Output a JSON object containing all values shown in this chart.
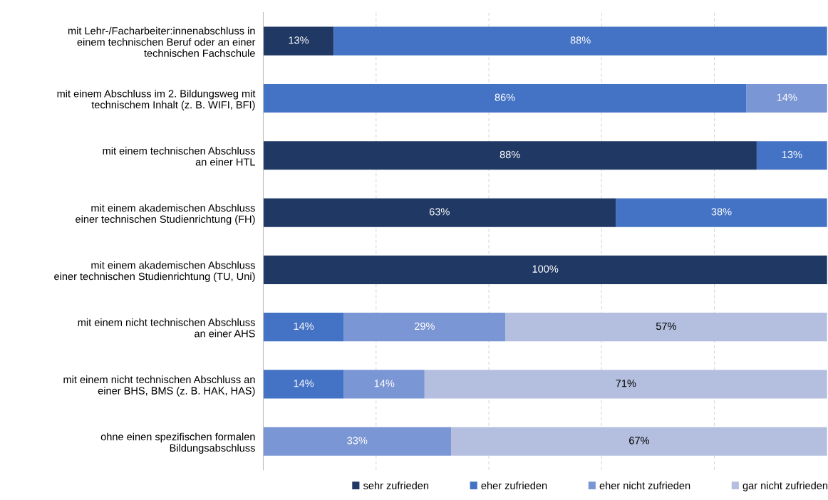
{
  "chart_data": {
    "type": "bar",
    "orientation": "horizontal",
    "stacked": true,
    "categories": [
      "mit Lehr-/Facharbeiter:innenabschluss in\neinem technischen Beruf oder an einer\ntechnischen Fachschule",
      "mit einem Abschluss im 2. Bildungsweg mit\ntechnischem Inhalt (z. B. WIFI, BFI)",
      "mit einem technischen Abschluss\nan einer HTL",
      "mit einem akademischen Abschluss\neiner technischen Studienrichtung (FH)",
      "mit einem akademischen Abschluss\neiner technischen Studienrichtung (TU, Uni)",
      "mit einem nicht technischen Abschluss\nan einer AHS",
      "mit einem nicht technischen Abschluss an\neiner BHS, BMS (z. B. HAK, HAS)",
      "ohne einen spezifischen formalen\nBildungsabschluss"
    ],
    "series": [
      {
        "name": "sehr zufrieden",
        "color": "#203864",
        "values": [
          12.5,
          null,
          87.5,
          62.5,
          100,
          null,
          null,
          null
        ],
        "value_labels": [
          "13%",
          null,
          "88%",
          "63%",
          "100%",
          null,
          null,
          null
        ]
      },
      {
        "name": "eher zufrieden",
        "color": "#4472c4",
        "values": [
          87.5,
          85.7,
          12.5,
          37.5,
          null,
          14.3,
          14.3,
          null
        ],
        "value_labels": [
          "88%",
          "86%",
          "13%",
          "38%",
          null,
          "14%",
          "14%",
          null
        ]
      },
      {
        "name": "eher nicht zufrieden",
        "color": "#7b96d4",
        "values": [
          null,
          14.3,
          null,
          null,
          null,
          28.6,
          14.3,
          33.3
        ],
        "value_labels": [
          null,
          "14%",
          null,
          null,
          null,
          "29%",
          "14%",
          "33%"
        ]
      },
      {
        "name": "gar nicht zufrieden",
        "color": "#b4bfe0",
        "values": [
          null,
          null,
          null,
          null,
          null,
          57.1,
          71.4,
          66.7
        ],
        "value_labels": [
          null,
          null,
          null,
          null,
          null,
          "57%",
          "71%",
          "67%"
        ]
      }
    ],
    "xlim": [
      0,
      100
    ],
    "xticks": [
      {
        "value": 20,
        "label": null
      },
      {
        "value": 40,
        "label": null
      },
      {
        "value": 60,
        "label": null
      },
      {
        "value": 80,
        "label": null
      }
    ],
    "tick_labels": "y",
    "grid": "x",
    "legend": "bottom"
  }
}
